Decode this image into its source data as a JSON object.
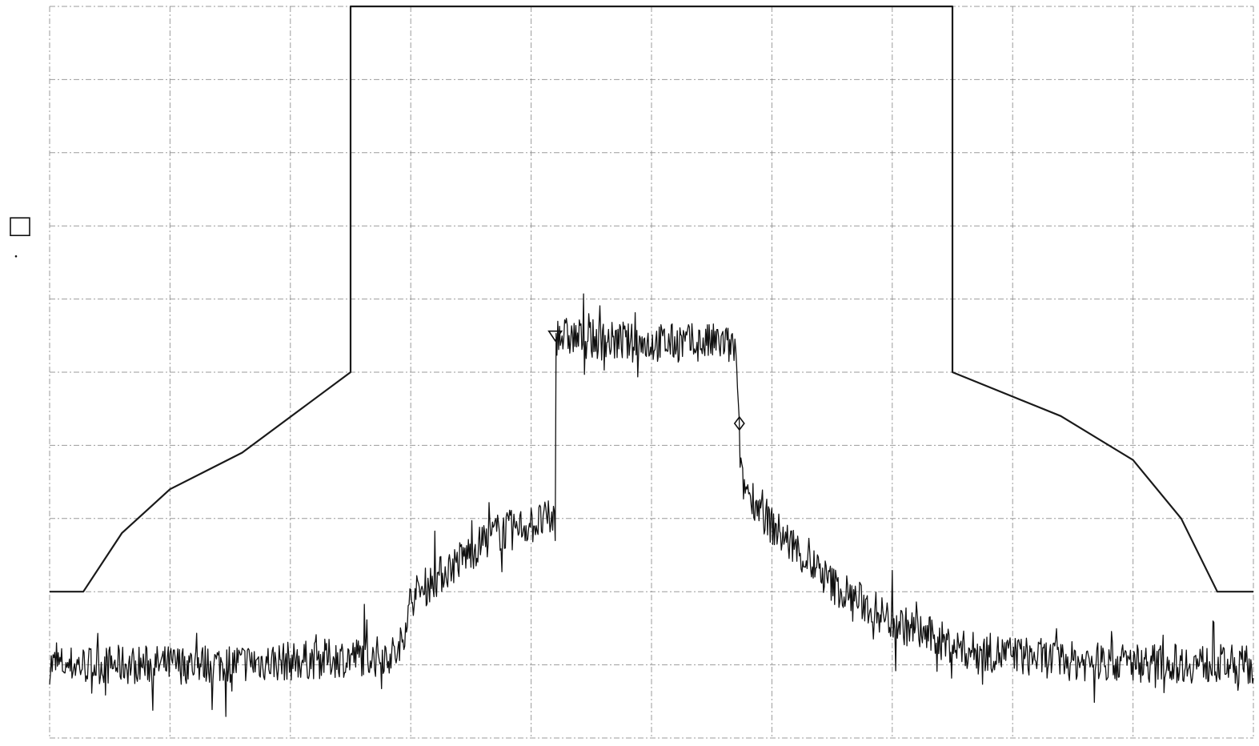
{
  "chart_data": {
    "type": "line",
    "title": "",
    "xlabel": "",
    "ylabel": "",
    "xlim": [
      0,
      10
    ],
    "ylim": [
      0,
      10
    ],
    "grid": true,
    "grid_divisions": {
      "x": 10,
      "y": 10
    },
    "colors": {
      "background": "#ffffff",
      "trace": "#111111",
      "mask": "#1a1a1a",
      "grid": "#8a8a8a"
    },
    "series": [
      {
        "role": "spectral mask",
        "points": [
          [
            0,
            2.0
          ],
          [
            0.28,
            2.0
          ],
          [
            0.6,
            2.8
          ],
          [
            1.0,
            3.4
          ],
          [
            1.6,
            3.9
          ],
          [
            2.5,
            5.0
          ],
          [
            2.5,
            10.0
          ],
          [
            7.5,
            10.0
          ],
          [
            7.5,
            5.0
          ],
          [
            8.4,
            4.4
          ],
          [
            9.0,
            3.8
          ],
          [
            9.4,
            3.0
          ],
          [
            9.7,
            2.0
          ],
          [
            10.0,
            2.0
          ]
        ]
      },
      {
        "role": "measured spectrum",
        "envelope": [
          [
            0,
            1.0
          ],
          [
            1.0,
            1.0
          ],
          [
            2.0,
            1.05
          ],
          [
            2.9,
            1.15
          ],
          [
            3.0,
            1.9
          ],
          [
            3.3,
            2.3
          ],
          [
            3.7,
            2.8
          ],
          [
            4.2,
            3.0
          ],
          [
            4.2,
            5.5
          ],
          [
            4.8,
            5.4
          ],
          [
            5.6,
            5.4
          ],
          [
            5.7,
            5.3
          ],
          [
            5.72,
            4.4
          ],
          [
            5.75,
            3.5
          ],
          [
            6.0,
            2.9
          ],
          [
            6.5,
            2.1
          ],
          [
            7.0,
            1.6
          ],
          [
            7.6,
            1.2
          ],
          [
            8.5,
            1.05
          ],
          [
            10.0,
            1.0
          ]
        ],
        "noise_amplitude": 0.3
      }
    ],
    "markers": [
      {
        "shape": "triangle-down",
        "x": 4.2,
        "y": 5.5
      },
      {
        "shape": "diamond",
        "x": 5.73,
        "y": 4.3
      }
    ],
    "side_mark": {
      "shape": "square-open",
      "y": 7.0
    }
  }
}
